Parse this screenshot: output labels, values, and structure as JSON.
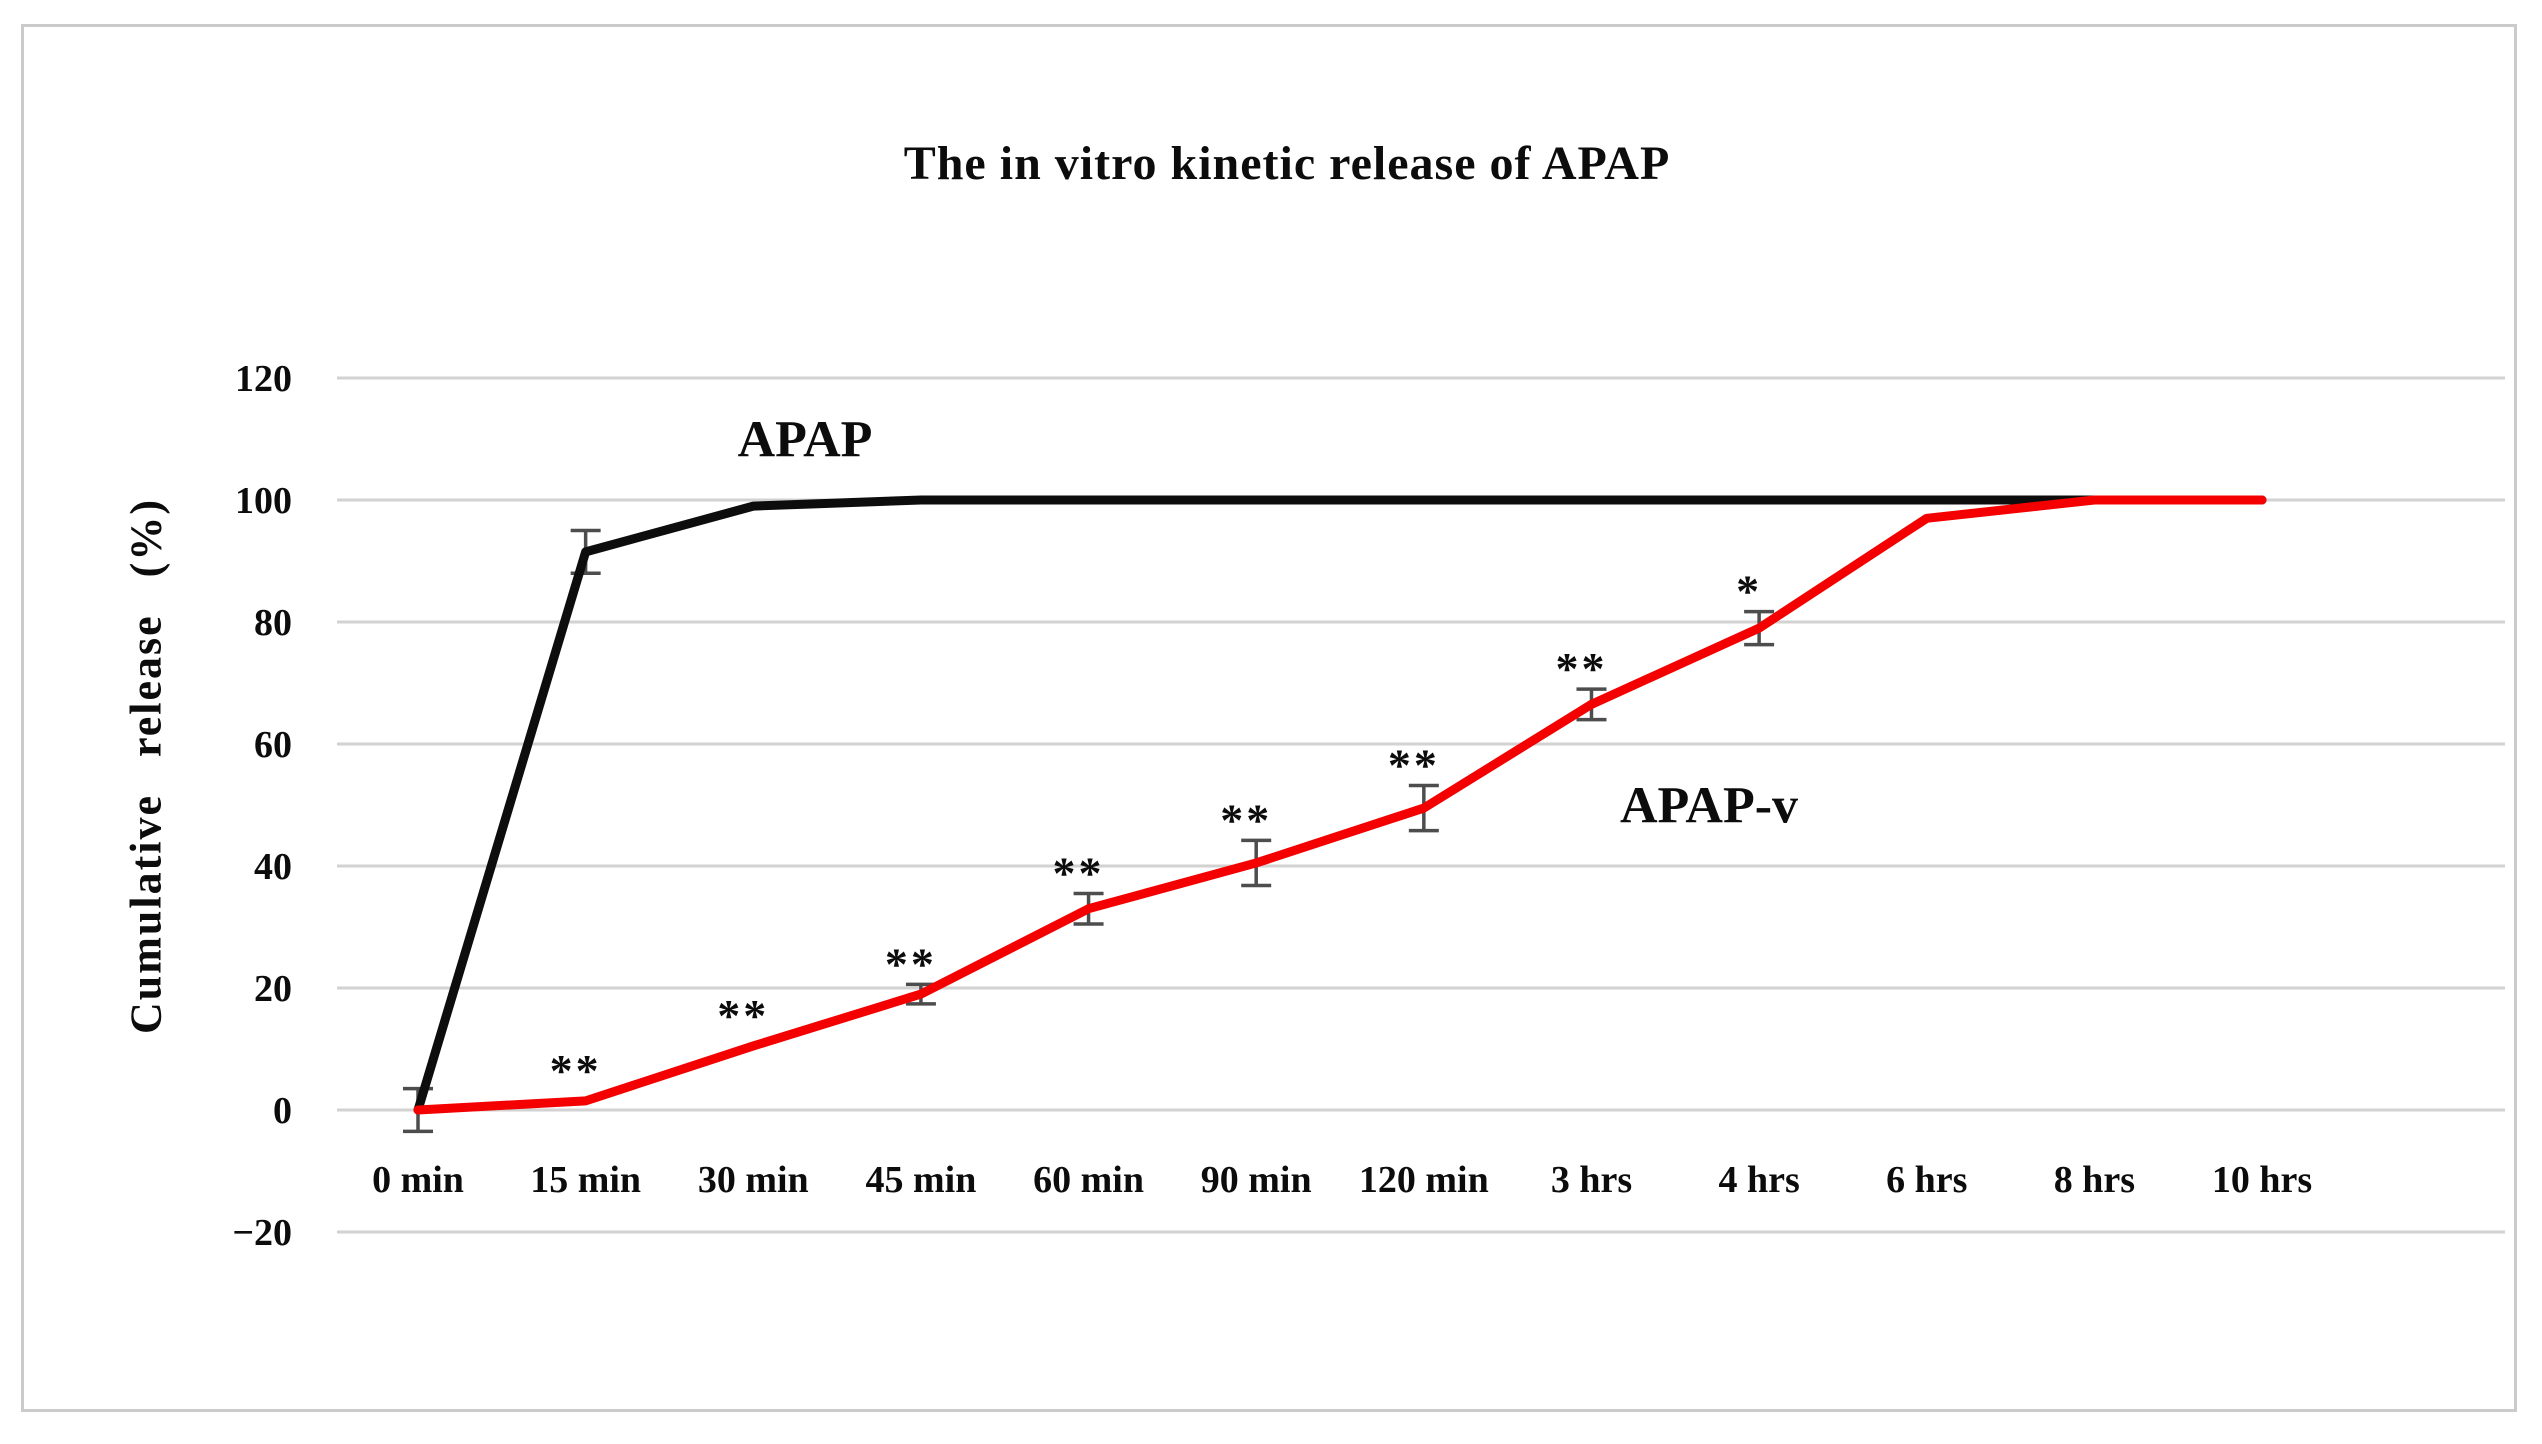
{
  "chart_data": {
    "type": "line",
    "title": "The in vitro kinetic release of APAP",
    "xlabel": "",
    "ylabel": "Cumulative release (%)",
    "ylim": [
      -20,
      120
    ],
    "grid": true,
    "legend_position": "inline-labels",
    "categories": [
      "0 min",
      "15 min",
      "30 min",
      "45 min",
      "60 min",
      "90 min",
      "120 min",
      "3 hrs",
      "4 hrs",
      "6 hrs",
      "8 hrs",
      "10 hrs"
    ],
    "y_ticks": [
      {
        "label": "120",
        "value": 120
      },
      {
        "label": "100",
        "value": 100
      },
      {
        "label": "80",
        "value": 80
      },
      {
        "label": "60",
        "value": 60
      },
      {
        "label": "40",
        "value": 40
      },
      {
        "label": "20",
        "value": 20
      },
      {
        "label": "0",
        "value": 0
      },
      {
        "label": "−20",
        "value": -20
      }
    ],
    "series": [
      {
        "name": "APAP",
        "color": "#0d0d0d",
        "values": [
          0,
          91.5,
          99,
          100,
          100,
          100,
          100,
          100,
          100,
          100,
          100,
          100
        ],
        "errors": [
          3.5,
          3.5,
          null,
          null,
          null,
          null,
          null,
          null,
          null,
          null,
          null,
          null
        ]
      },
      {
        "name": "APAP-v",
        "color": "#f40000",
        "values": [
          0,
          1.5,
          10.5,
          19,
          33,
          40.5,
          49.5,
          66.5,
          79,
          97,
          100,
          100
        ],
        "errors": [
          null,
          null,
          null,
          1.6,
          2.5,
          3.7,
          3.7,
          2.5,
          2.7,
          null,
          null,
          null
        ]
      }
    ],
    "series_labels": {
      "apap": "APAP",
      "apap_v": "APAP-v"
    },
    "annotations": [
      {
        "series": "APAP-v",
        "category": "15 min",
        "index": 1,
        "symbol": "**"
      },
      {
        "series": "APAP-v",
        "category": "30 min",
        "index": 2,
        "symbol": "**"
      },
      {
        "series": "APAP-v",
        "category": "45 min",
        "index": 3,
        "symbol": "**"
      },
      {
        "series": "APAP-v",
        "category": "60 min",
        "index": 4,
        "symbol": "**"
      },
      {
        "series": "APAP-v",
        "category": "90 min",
        "index": 5,
        "symbol": "**"
      },
      {
        "series": "APAP-v",
        "category": "120 min",
        "index": 6,
        "symbol": "**"
      },
      {
        "series": "APAP-v",
        "category": "3 hrs",
        "index": 7,
        "symbol": "**"
      },
      {
        "series": "APAP-v",
        "category": "4 hrs",
        "index": 8,
        "symbol": "*"
      }
    ],
    "colors": {
      "grid": "#d2d2d2",
      "figure_border": "#cbcbcb",
      "error_bar": "#4d4d4d",
      "text": "#0c0c0c",
      "apap_line": "#0d0d0d",
      "apap_v_line": "#f40000"
    }
  }
}
